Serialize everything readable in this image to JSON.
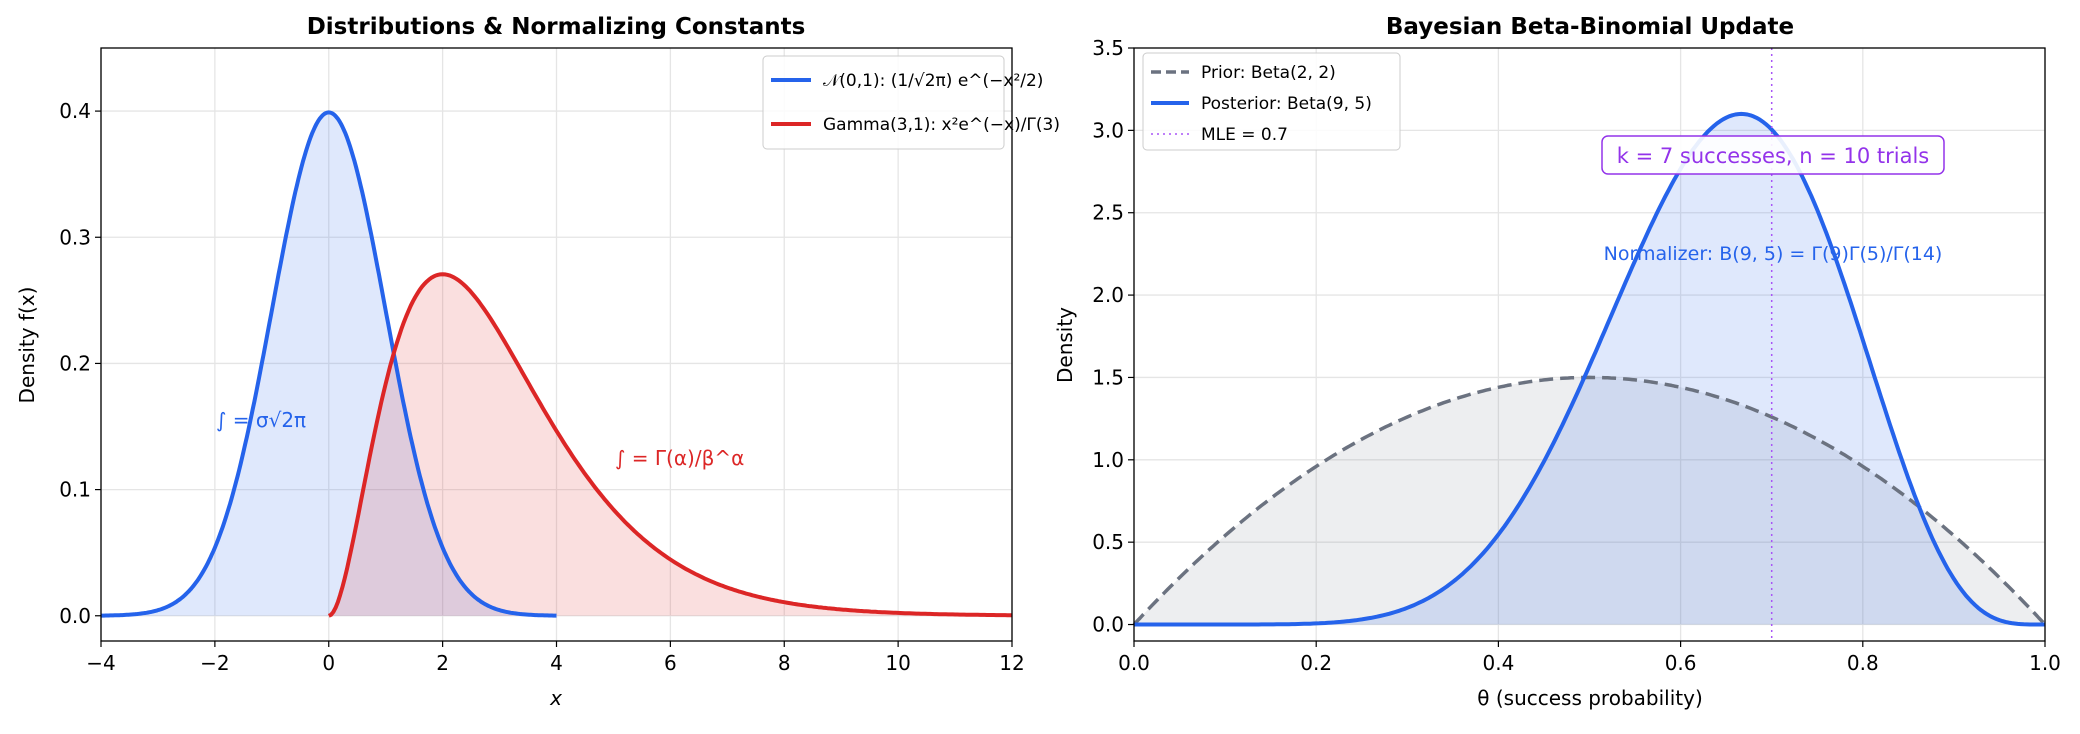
{
  "chart_data": [
    {
      "type": "area",
      "title": "Distributions & Normalizing Constants",
      "xlabel": "x",
      "ylabel": "Density f(x)",
      "xlim": [
        -4,
        12
      ],
      "ylim": [
        -0.02,
        0.45
      ],
      "xticks": [
        "−4",
        "−2",
        "0",
        "2",
        "4",
        "6",
        "8",
        "10",
        "12"
      ],
      "yticks": [
        "0.0",
        "0.1",
        "0.2",
        "0.3",
        "0.4"
      ],
      "grid": true,
      "legend_position": "top-right",
      "series": [
        {
          "name": "𝒩(0,1): (1/√2π) e^(−x²/2)",
          "distribution": "normal",
          "mean": 0,
          "sd": 1,
          "x_range": [
            -4,
            4
          ],
          "color": "#2563eb",
          "peak": 0.399
        },
        {
          "name": "Gamma(3,1): x²e^(−x)/Γ(3)",
          "distribution": "gamma",
          "shape": 3,
          "rate": 1,
          "x_range": [
            0,
            12
          ],
          "color": "#dc2626",
          "peak": 0.271
        }
      ],
      "annotations": [
        {
          "text": "∫ = σ√2π",
          "color": "#2563eb"
        },
        {
          "text": "∫ = Γ(α)/β^α",
          "color": "#dc2626"
        }
      ]
    },
    {
      "type": "area",
      "title": "Bayesian Beta-Binomial Update",
      "xlabel": "θ (success probability)",
      "ylabel": "Density",
      "xlim": [
        0,
        1
      ],
      "ylim": [
        -0.1,
        3.5
      ],
      "xticks": [
        "0.0",
        "0.2",
        "0.4",
        "0.6",
        "0.8",
        "1.0"
      ],
      "yticks": [
        "0.0",
        "0.5",
        "1.0",
        "1.5",
        "2.0",
        "2.5",
        "3.0",
        "3.5"
      ],
      "grid": true,
      "legend_position": "top-left",
      "series": [
        {
          "name": "Prior: Beta(2, 2)",
          "distribution": "beta",
          "a": 2,
          "b": 2,
          "style": "dashed",
          "color": "#6b7280",
          "peak": 1.5
        },
        {
          "name": "Posterior: Beta(9, 5)",
          "distribution": "beta",
          "a": 9,
          "b": 5,
          "style": "solid",
          "color": "#2563eb",
          "peak": 3.1
        },
        {
          "name": "MLE = 0.7",
          "vline": 0.7,
          "style": "dotted",
          "color": "#a855f7"
        }
      ],
      "annotations": [
        {
          "text": "k = 7 successes, n = 10 trials",
          "color": "#9333ea"
        },
        {
          "text": "Normalizer: B(9, 5) = Γ(9)Γ(5)/Γ(14)",
          "color": "#2563eb"
        }
      ]
    }
  ]
}
